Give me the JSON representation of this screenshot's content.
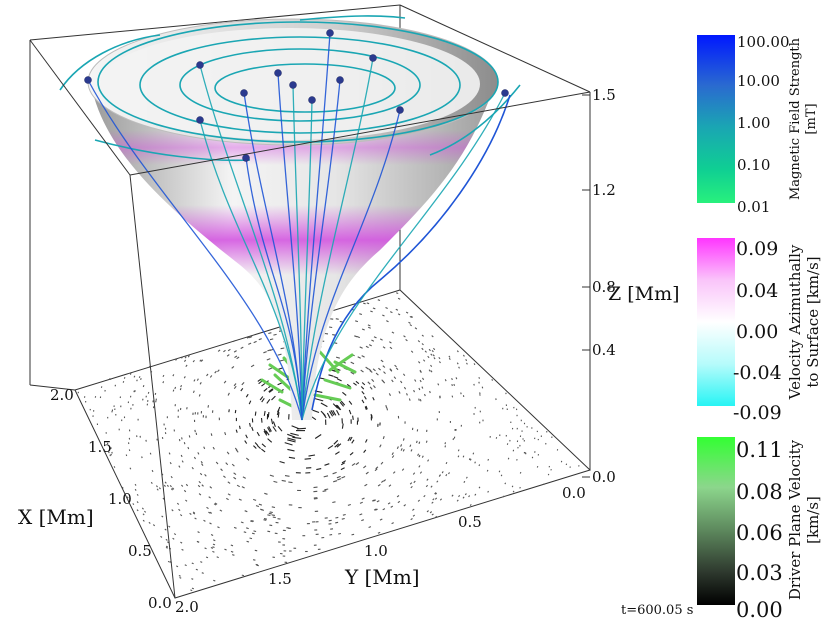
{
  "axes": {
    "x_label": "X [Mm]",
    "y_label": "Y [Mm]",
    "z_label": "Z [Mm]",
    "x_ticks": [
      "0.0",
      "0.5",
      "1.0",
      "1.5",
      "2.0"
    ],
    "y_ticks": [
      "0.0",
      "0.5",
      "1.0",
      "1.5",
      "2.0"
    ],
    "z_ticks": [
      "0.0",
      "0.4",
      "0.8",
      "1.2",
      "1.5"
    ],
    "x_range": [
      0.0,
      2.0
    ],
    "y_range": [
      0.0,
      2.0
    ],
    "z_range": [
      0.0,
      1.5
    ]
  },
  "colorbars": [
    {
      "title": "Magnetic Field Strength",
      "unit": "[mT]",
      "ticks": [
        "100.00",
        "10.00",
        "1.00",
        "0.10",
        "0.01"
      ],
      "colors": [
        "#0018ff",
        "#2a6ad0",
        "#1aa6b3",
        "#0fcf93",
        "#28f07d"
      ],
      "scale": "log"
    },
    {
      "title": "Velocity Azimuthally",
      "unit": "to Surface [km/s]",
      "ticks": [
        "0.09",
        "0.04",
        "0.00",
        "-0.04",
        "-0.09"
      ],
      "colors": [
        "#ff35ff",
        "#fac4fa",
        "#ffffff",
        "#b6fbfb",
        "#27f4f4"
      ]
    },
    {
      "title": "Driver Plane Velocity",
      "unit": "[km/s]",
      "ticks": [
        "0.11",
        "0.08",
        "0.06",
        "0.03",
        "0.00"
      ],
      "colors": [
        "#33ff33",
        "#8cd68c",
        "#5e8a5e",
        "#2f3a2f",
        "#000000"
      ]
    }
  ],
  "time_label": "t=600.05 s",
  "colors": {
    "funnel": "#dcdcdc",
    "funnel_band": "#d24ee0",
    "field_line": "#1aa6b3",
    "field_line_dark": "#1f55d6",
    "seed_point": "#2b3a8f",
    "driver_arrow": "#66cc55"
  }
}
